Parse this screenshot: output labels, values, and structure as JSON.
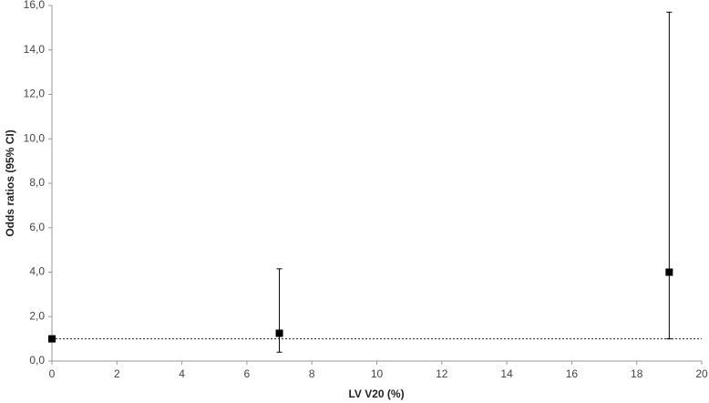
{
  "chart_data": {
    "type": "scatter",
    "x_label": "LV V20 (%)",
    "y_label": "Odds ratios  (95% CI)",
    "x": [
      0,
      7,
      19
    ],
    "values": [
      1.0,
      1.25,
      4.0
    ],
    "lower": [
      null,
      0.4,
      1.0
    ],
    "upper": [
      null,
      4.15,
      15.7
    ],
    "color": "#000000",
    "reference_line": 1,
    "xlim": [
      0,
      20
    ],
    "xticks": [
      0,
      2,
      4,
      6,
      8,
      10,
      12,
      14,
      16,
      18,
      20
    ],
    "ylim": [
      0,
      16
    ],
    "yticks": [
      {
        "value": 0,
        "label": "0,0"
      },
      {
        "value": 2,
        "label": "2,0"
      },
      {
        "value": 4,
        "label": "4,0"
      },
      {
        "value": 6,
        "label": "6,0"
      },
      {
        "value": 8,
        "label": "8,0"
      },
      {
        "value": 10,
        "label": "10,0"
      },
      {
        "value": 12,
        "label": "12,0"
      },
      {
        "value": 14,
        "label": "14,0"
      },
      {
        "value": 16,
        "label": "16,0"
      }
    ],
    "grid": false
  }
}
